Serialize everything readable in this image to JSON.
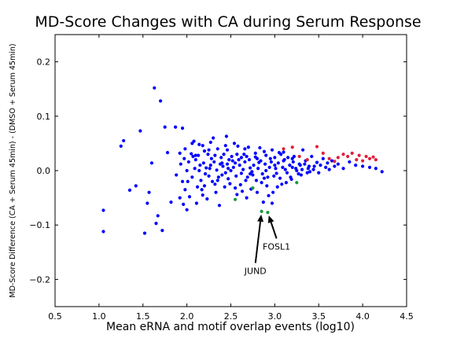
{
  "chart_data": {
    "type": "scatter",
    "title": "MD-Score Changes with CA during Serum Response",
    "xlabel": "Mean eRNA and motif overlap events (log10)",
    "ylabel": "MD-Score Difference (CA + Serum 45min) - (DMSO + Serum 45min)",
    "xlim": [
      0.5,
      4.5
    ],
    "ylim": [
      -0.25,
      0.25
    ],
    "x_ticks": [
      0.5,
      1.0,
      1.5,
      2.0,
      2.5,
      3.0,
      3.5,
      4.0,
      4.5
    ],
    "y_ticks": [
      -0.2,
      -0.1,
      0.0,
      0.1,
      0.2
    ],
    "x_tick_labels": [
      "0.5",
      "1.0",
      "1.5",
      "2.0",
      "2.5",
      "3.0",
      "3.5",
      "4.0",
      "4.5"
    ],
    "y_tick_labels": [
      "−0.2",
      "−0.1",
      "0.0",
      "0.1",
      "0.2"
    ],
    "grid": false,
    "series": [
      {
        "color": "#0000ff",
        "points": [
          [
            1.05,
            -0.073
          ],
          [
            1.05,
            -0.112
          ],
          [
            1.25,
            0.045
          ],
          [
            1.28,
            0.055
          ],
          [
            1.35,
            -0.036
          ],
          [
            1.42,
            -0.028
          ],
          [
            1.47,
            0.073
          ],
          [
            1.52,
            -0.115
          ],
          [
            1.55,
            -0.06
          ],
          [
            1.57,
            -0.04
          ],
          [
            1.6,
            0.014
          ],
          [
            1.63,
            0.152
          ],
          [
            1.65,
            -0.097
          ],
          [
            1.67,
            -0.083
          ],
          [
            1.7,
            0.128
          ],
          [
            1.72,
            -0.11
          ],
          [
            1.75,
            0.08
          ],
          [
            1.78,
            0.033
          ],
          [
            1.82,
            -0.058
          ],
          [
            1.87,
            0.08
          ],
          [
            1.92,
            0.032
          ],
          [
            1.95,
            0.078
          ],
          [
            1.95,
            -0.02
          ],
          [
            1.98,
            -0.035
          ],
          [
            2.0,
            0.0
          ],
          [
            2.05,
            0.031
          ],
          [
            2.08,
            0.054
          ],
          [
            2.1,
            0.02
          ],
          [
            2.12,
            -0.03
          ],
          [
            2.15,
            0.01
          ],
          [
            2.18,
            -0.045
          ],
          [
            2.2,
            0.036
          ],
          [
            2.22,
            0.005
          ],
          [
            2.25,
            -0.01
          ],
          [
            2.28,
            0.022
          ],
          [
            2.3,
            0.06
          ],
          [
            2.32,
            -0.025
          ],
          [
            2.35,
            0.04
          ],
          [
            2.38,
            0.012
          ],
          [
            2.4,
            -0.008
          ],
          [
            2.42,
            0.03
          ],
          [
            2.45,
            0.063
          ],
          [
            2.47,
            -0.015
          ],
          [
            2.48,
            0.02
          ],
          [
            2.5,
            0.0
          ],
          [
            2.52,
            0.018
          ],
          [
            2.55,
            -0.032
          ],
          [
            2.58,
            0.045
          ],
          [
            2.6,
            0.01
          ],
          [
            2.62,
            -0.005
          ],
          [
            2.65,
            0.03
          ],
          [
            2.67,
            -0.018
          ],
          [
            2.7,
            0.043
          ],
          [
            2.72,
            0.005
          ],
          [
            2.75,
            -0.008
          ],
          [
            2.78,
            0.025
          ],
          [
            2.8,
            -0.04
          ],
          [
            2.82,
            0.015
          ],
          [
            2.85,
            -0.022
          ],
          [
            2.88,
            0.035
          ],
          [
            2.9,
            0.0
          ],
          [
            2.92,
            -0.012
          ],
          [
            2.95,
            0.022
          ],
          [
            2.97,
            -0.06
          ],
          [
            3.0,
            0.01
          ],
          [
            3.02,
            -0.005
          ],
          [
            3.05,
            0.033
          ],
          [
            3.08,
            -0.025
          ],
          [
            3.1,
            0.018
          ],
          [
            3.12,
            0.002
          ],
          [
            3.15,
            0.024
          ],
          [
            3.18,
            -0.012
          ],
          [
            3.2,
            0.006
          ],
          [
            3.22,
            0.026
          ],
          [
            3.25,
            0.0
          ],
          [
            3.28,
            0.012
          ],
          [
            3.3,
            -0.008
          ],
          [
            3.32,
            0.038
          ],
          [
            3.35,
            0.018
          ],
          [
            3.38,
            0.004
          ],
          [
            3.4,
            -0.002
          ],
          [
            3.42,
            0.026
          ],
          [
            3.45,
            0.008
          ],
          [
            3.48,
            0.015
          ],
          [
            3.5,
            -0.004
          ],
          [
            3.52,
            0.01
          ],
          [
            3.55,
            0.022
          ],
          [
            3.58,
            0.006
          ],
          [
            3.6,
            0.014
          ],
          [
            3.62,
            0.002
          ],
          [
            3.65,
            0.018
          ],
          [
            3.68,
            0.008
          ],
          [
            3.72,
            0.012
          ],
          [
            3.78,
            0.004
          ],
          [
            3.85,
            0.016
          ],
          [
            3.92,
            0.01
          ],
          [
            4.0,
            0.008
          ],
          [
            4.08,
            0.006
          ],
          [
            4.15,
            0.004
          ],
          [
            4.22,
            -0.002
          ],
          [
            1.98,
            0.04
          ],
          [
            2.02,
            0.016
          ],
          [
            2.06,
            -0.012
          ],
          [
            2.09,
            0.004
          ],
          [
            2.13,
            0.028
          ],
          [
            2.16,
            -0.018
          ],
          [
            2.19,
            0.014
          ],
          [
            2.21,
            -0.006
          ],
          [
            2.24,
            0.03
          ],
          [
            2.26,
            0.004
          ],
          [
            2.29,
            -0.02
          ],
          [
            2.31,
            0.016
          ],
          [
            2.34,
            0.001
          ],
          [
            2.36,
            -0.012
          ],
          [
            2.39,
            0.024
          ],
          [
            2.41,
            0.008
          ],
          [
            2.44,
            -0.004
          ],
          [
            2.46,
            0.012
          ],
          [
            2.49,
            -0.024
          ],
          [
            2.51,
            0.026
          ],
          [
            2.53,
            0.006
          ],
          [
            2.56,
            -0.01
          ],
          [
            2.59,
            0.02
          ],
          [
            2.61,
            -0.026
          ],
          [
            2.64,
            0.002
          ],
          [
            2.66,
            0.016
          ],
          [
            2.69,
            -0.012
          ],
          [
            2.71,
            0.02
          ],
          [
            2.74,
            -0.002
          ],
          [
            2.76,
            0.01
          ],
          [
            2.79,
            -0.018
          ],
          [
            2.81,
            0.004
          ],
          [
            2.84,
            0.018
          ],
          [
            2.86,
            -0.006
          ],
          [
            2.89,
            0.012
          ],
          [
            2.91,
            -0.028
          ],
          [
            2.94,
            0.006
          ],
          [
            2.96,
            0.016
          ],
          [
            2.99,
            -0.01
          ],
          [
            3.01,
            0.004
          ],
          [
            3.04,
            0.014
          ],
          [
            3.06,
            -0.014
          ],
          [
            3.09,
            0.006
          ],
          [
            3.11,
            0.02
          ],
          [
            3.14,
            -0.004
          ],
          [
            3.17,
            0.01
          ],
          [
            3.19,
            -0.016
          ],
          [
            3.21,
            0.016
          ],
          [
            3.24,
            0.004
          ],
          [
            3.27,
            -0.006
          ],
          [
            3.29,
            0.01
          ],
          [
            3.31,
            0.002
          ],
          [
            3.34,
            0.012
          ],
          [
            3.37,
            -0.004
          ],
          [
            3.39,
            0.008
          ],
          [
            3.44,
            0.002
          ],
          [
            2.03,
            -0.048
          ],
          [
            2.11,
            -0.06
          ],
          [
            2.17,
            -0.035
          ],
          [
            2.23,
            -0.052
          ],
          [
            2.33,
            -0.04
          ],
          [
            2.37,
            -0.064
          ],
          [
            2.43,
            -0.03
          ],
          [
            2.57,
            -0.044
          ],
          [
            2.63,
            -0.038
          ],
          [
            2.68,
            -0.05
          ],
          [
            2.73,
            -0.034
          ],
          [
            2.87,
            -0.058
          ],
          [
            2.93,
            -0.046
          ],
          [
            2.98,
            -0.04
          ],
          [
            3.03,
            -0.03
          ],
          [
            3.13,
            -0.022
          ],
          [
            2.14,
            0.048
          ],
          [
            2.27,
            0.052
          ],
          [
            2.44,
            0.046
          ],
          [
            2.54,
            0.05
          ],
          [
            2.66,
            0.04
          ],
          [
            2.83,
            0.042
          ],
          [
            2.97,
            0.038
          ],
          [
            3.07,
            0.03
          ],
          [
            1.88,
            -0.008
          ],
          [
            1.93,
            0.012
          ],
          [
            1.97,
            0.022
          ],
          [
            2.01,
            -0.02
          ],
          [
            2.07,
            0.026
          ],
          [
            2.14,
            0.0
          ],
          [
            2.2,
            -0.028
          ],
          [
            2.27,
            0.01
          ],
          [
            2.35,
            -0.018
          ],
          [
            2.4,
            0.014
          ],
          [
            2.47,
            0.004
          ],
          [
            2.55,
            0.014
          ],
          [
            2.62,
            0.024
          ],
          [
            2.72,
            -0.006
          ],
          [
            2.8,
            0.022
          ],
          [
            2.88,
            -0.014
          ],
          [
            1.92,
            -0.05
          ],
          [
            1.96,
            -0.062
          ],
          [
            2.0,
            -0.072
          ],
          [
            2.06,
            0.05
          ],
          [
            2.1,
            0.028
          ],
          [
            2.18,
            0.046
          ],
          [
            2.25,
            0.038
          ],
          [
            2.32,
            0.028
          ],
          [
            2.46,
            0.038
          ],
          [
            2.57,
            0.03
          ],
          [
            2.68,
            0.026
          ],
          [
            2.78,
            0.032
          ],
          [
            2.9,
            0.028
          ],
          [
            3.0,
            0.024
          ],
          [
            3.1,
            0.034
          ],
          [
            3.2,
            0.022
          ]
        ]
      },
      {
        "color": "#e0203a",
        "points": [
          [
            3.1,
            0.04
          ],
          [
            3.2,
            0.043
          ],
          [
            3.28,
            0.026
          ],
          [
            3.37,
            0.02
          ],
          [
            3.48,
            0.044
          ],
          [
            3.55,
            0.032
          ],
          [
            3.62,
            0.022
          ],
          [
            3.68,
            0.017
          ],
          [
            3.72,
            0.024
          ],
          [
            3.78,
            0.03
          ],
          [
            3.83,
            0.026
          ],
          [
            3.88,
            0.032
          ],
          [
            3.93,
            0.02
          ],
          [
            3.96,
            0.028
          ],
          [
            4.0,
            0.018
          ],
          [
            4.04,
            0.026
          ],
          [
            4.08,
            0.022
          ],
          [
            4.12,
            0.025
          ],
          [
            4.15,
            0.02
          ]
        ]
      },
      {
        "color": "#1a9a3a",
        "points": [
          [
            2.55,
            -0.053
          ],
          [
            2.75,
            -0.032
          ],
          [
            2.85,
            -0.075
          ],
          [
            2.92,
            -0.077
          ],
          [
            3.25,
            -0.022
          ]
        ]
      }
    ],
    "annotations": [
      {
        "text": "JUND",
        "point": [
          2.85,
          -0.075
        ],
        "text_pos": [
          2.78,
          -0.19
        ]
      },
      {
        "text": "FOSL1",
        "point": [
          2.92,
          -0.077
        ],
        "text_pos": [
          3.02,
          -0.145
        ]
      }
    ]
  }
}
